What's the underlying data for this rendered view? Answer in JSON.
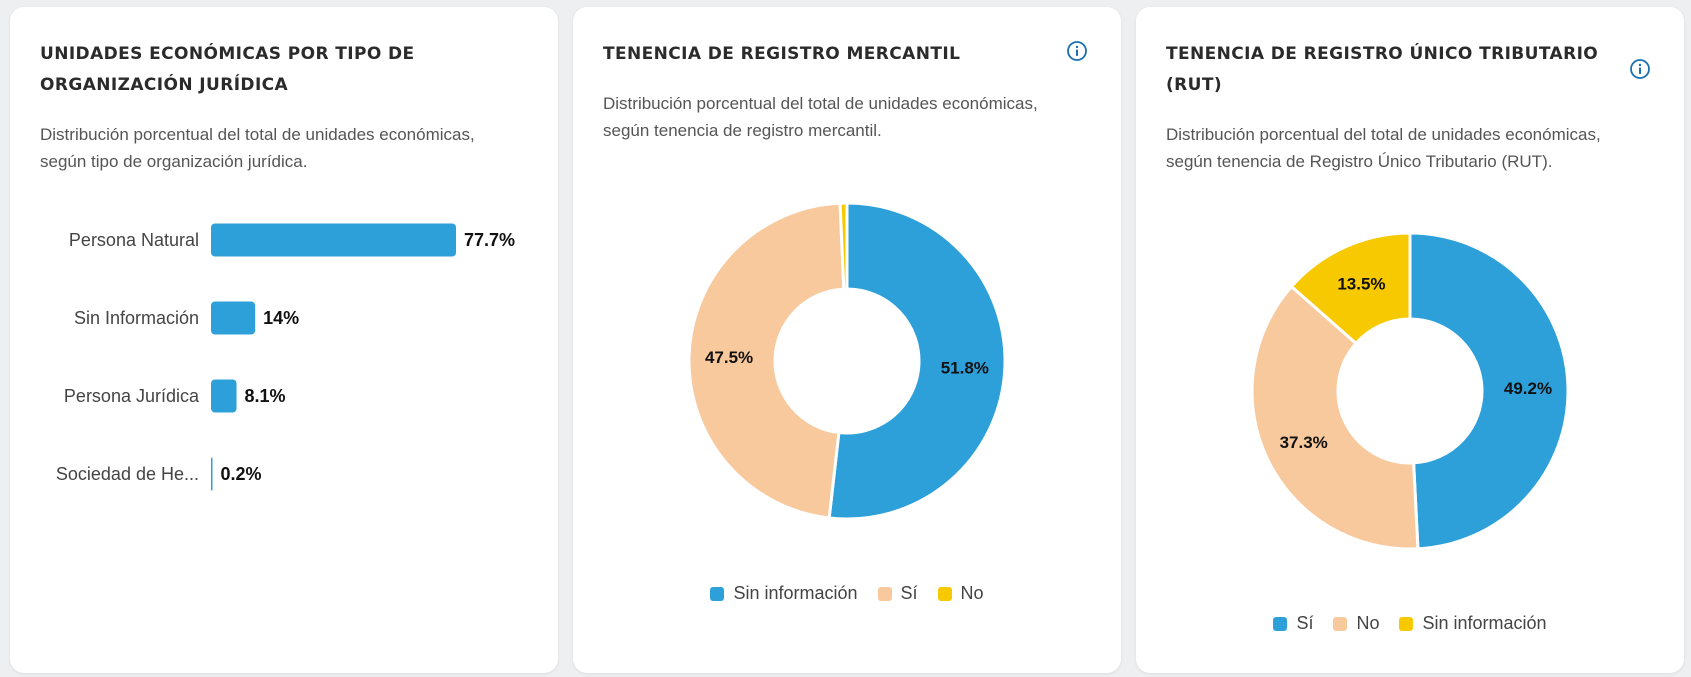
{
  "colors": {
    "blue": "#2d9fd9",
    "peach": "#f9c99e",
    "yellow": "#f7c900"
  },
  "cards": [
    {
      "title_line1": "UNIDADES ECONÓMICAS POR TIPO DE",
      "title_line2": "ORGANIZACIÓN JURÍDICA",
      "subtitle_line1": "Distribución porcentual del total de unidades económicas,",
      "subtitle_line2": "según tipo de organización jurídica."
    },
    {
      "title_line1": "TENENCIA DE REGISTRO MERCANTIL",
      "subtitle_line1": "Distribución porcentual del total de unidades económicas,",
      "subtitle_line2": "según tenencia de registro mercantil.",
      "info_icon": "info-icon"
    },
    {
      "title_line1": "TENENCIA DE REGISTRO ÚNICO TRIBUTARIO",
      "title_line2": "(RUT)",
      "subtitle_line1": "Distribución porcentual del total de unidades económicas,",
      "subtitle_line2": "según tenencia de Registro Único Tributario (RUT).",
      "info_icon": "info-icon"
    }
  ],
  "chart_data": [
    {
      "type": "bar",
      "orientation": "horizontal",
      "categories": [
        "Persona Natural",
        "Sin Información",
        "Persona Jurídica",
        "Sociedad de He..."
      ],
      "values": [
        77.7,
        14,
        8.1,
        0.2
      ],
      "labels": [
        "77.7%",
        "14%",
        "8.1%",
        "0.2%"
      ],
      "color": "#2d9fd9"
    },
    {
      "type": "pie",
      "donut": true,
      "categories": [
        "Sin información",
        "Sí",
        "No"
      ],
      "values": [
        51.8,
        47.5,
        0.7
      ],
      "labels": [
        "51.8%",
        "47.5%",
        ""
      ],
      "colors": [
        "#2d9fd9",
        "#f9c99e",
        "#f7c900"
      ],
      "legend": [
        "Sin información",
        "Sí",
        "No"
      ],
      "legend_position": "bottom"
    },
    {
      "type": "pie",
      "donut": true,
      "categories": [
        "Sí",
        "No",
        "Sin información"
      ],
      "values": [
        49.2,
        37.3,
        13.5
      ],
      "labels": [
        "49.2%",
        "37.3%",
        "13.5%"
      ],
      "colors": [
        "#2d9fd9",
        "#f9c99e",
        "#f7c900"
      ],
      "legend": [
        "Sí",
        "No",
        "Sin información"
      ],
      "legend_position": "bottom"
    }
  ]
}
